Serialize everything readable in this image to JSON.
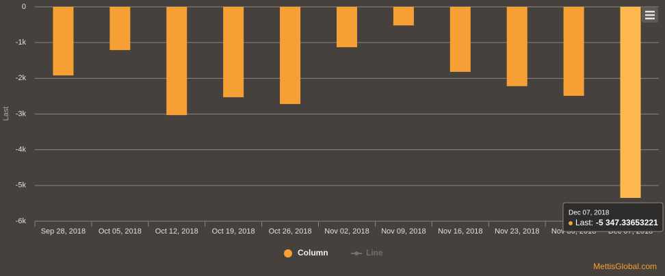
{
  "chart_data": {
    "type": "bar",
    "y_label": "Last",
    "categories": [
      "Sep 28, 2018",
      "Oct 05, 2018",
      "Oct 12, 2018",
      "Oct 19, 2018",
      "Oct 26, 2018",
      "Nov 02, 2018",
      "Nov 09, 2018",
      "Nov 16, 2018",
      "Nov 23, 2018",
      "Nov 30, 2018",
      "Dec 07, 2018"
    ],
    "series": [
      {
        "name": "Column",
        "color": "#f7a035",
        "values": [
          -1920,
          -1210,
          -3030,
          -2530,
          -2720,
          -1130,
          -520,
          -1820,
          -2220,
          -2490,
          -5347.33653221
        ]
      },
      {
        "name": "Line",
        "color": "#707070",
        "visible": false
      }
    ],
    "ylim": [
      -6000,
      0
    ],
    "yticks": [
      0,
      {
        "value": -1000,
        "label": "-1k"
      },
      {
        "value": -2000,
        "label": "-2k"
      },
      {
        "value": -3000,
        "label": "-3k"
      },
      {
        "value": -4000,
        "label": "-4k"
      },
      {
        "value": -5000,
        "label": "-5k"
      },
      {
        "value": -6000,
        "label": "-6k"
      }
    ],
    "grid": true,
    "hover_color": "#ffb84d",
    "tooltip": {
      "index": 10,
      "label": "Last:",
      "value_label": "-5 347.33653221"
    },
    "credits": "MettisGlobal.com"
  }
}
